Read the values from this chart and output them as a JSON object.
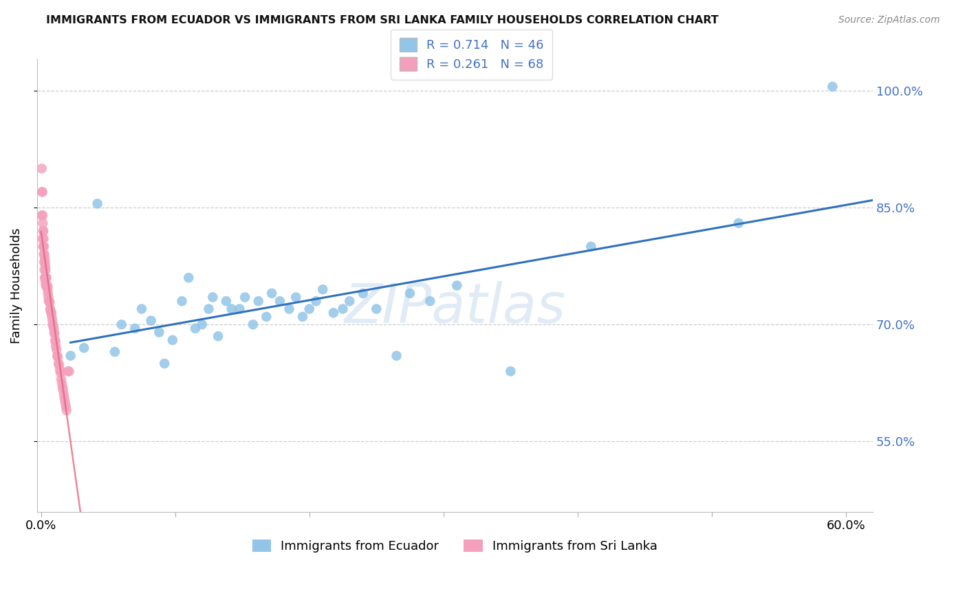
{
  "title": "IMMIGRANTS FROM ECUADOR VS IMMIGRANTS FROM SRI LANKA FAMILY HOUSEHOLDS CORRELATION CHART",
  "source": "Source: ZipAtlas.com",
  "xlabel_ecuador": "Immigrants from Ecuador",
  "xlabel_srilanka": "Immigrants from Sri Lanka",
  "ylabel": "Family Households",
  "watermark": "ZIPatlas",
  "xlim": [
    -0.003,
    0.62
  ],
  "ylim": [
    0.46,
    1.04
  ],
  "color_ecuador": "#92C5E8",
  "color_srilanka": "#F4A0BC",
  "color_line_ecuador": "#3070C0",
  "color_line_srilanka": "#E06080",
  "color_right_axis": "#4472C4",
  "ecuador_R": 0.714,
  "ecuador_N": 46,
  "srilanka_R": 0.261,
  "srilanka_N": 68,
  "ecuador_x": [
    0.022,
    0.032,
    0.042,
    0.055,
    0.06,
    0.07,
    0.075,
    0.082,
    0.088,
    0.092,
    0.098,
    0.105,
    0.11,
    0.115,
    0.12,
    0.125,
    0.128,
    0.132,
    0.138,
    0.142,
    0.148,
    0.152,
    0.158,
    0.162,
    0.168,
    0.172,
    0.178,
    0.185,
    0.19,
    0.195,
    0.2,
    0.205,
    0.21,
    0.218,
    0.225,
    0.23,
    0.24,
    0.25,
    0.265,
    0.275,
    0.29,
    0.31,
    0.35,
    0.41,
    0.52,
    0.59
  ],
  "ecuador_y": [
    0.66,
    0.67,
    0.855,
    0.665,
    0.7,
    0.695,
    0.72,
    0.705,
    0.69,
    0.65,
    0.68,
    0.73,
    0.76,
    0.695,
    0.7,
    0.72,
    0.735,
    0.685,
    0.73,
    0.72,
    0.72,
    0.735,
    0.7,
    0.73,
    0.71,
    0.74,
    0.73,
    0.72,
    0.735,
    0.71,
    0.72,
    0.73,
    0.745,
    0.715,
    0.72,
    0.73,
    0.74,
    0.72,
    0.66,
    0.74,
    0.73,
    0.75,
    0.64,
    0.8,
    0.83,
    1.005
  ],
  "srilanka_x": [
    0.0005,
    0.0005,
    0.0008,
    0.001,
    0.001,
    0.0012,
    0.0013,
    0.0015,
    0.0015,
    0.0018,
    0.0018,
    0.002,
    0.002,
    0.0022,
    0.0022,
    0.0025,
    0.0025,
    0.0028,
    0.0028,
    0.003,
    0.003,
    0.0032,
    0.0032,
    0.0035,
    0.0035,
    0.0038,
    0.004,
    0.0042,
    0.0045,
    0.0048,
    0.005,
    0.0052,
    0.0055,
    0.0058,
    0.006,
    0.0065,
    0.0068,
    0.007,
    0.0075,
    0.0078,
    0.008,
    0.0085,
    0.0088,
    0.009,
    0.0095,
    0.0098,
    0.01,
    0.0105,
    0.0108,
    0.011,
    0.0115,
    0.012,
    0.0125,
    0.013,
    0.0135,
    0.014,
    0.0145,
    0.015,
    0.0155,
    0.016,
    0.0165,
    0.017,
    0.0175,
    0.018,
    0.0185,
    0.019,
    0.02,
    0.021
  ],
  "srilanka_y": [
    0.9,
    0.84,
    0.87,
    0.87,
    0.81,
    0.84,
    0.83,
    0.82,
    0.8,
    0.82,
    0.8,
    0.81,
    0.79,
    0.8,
    0.78,
    0.79,
    0.77,
    0.785,
    0.76,
    0.78,
    0.76,
    0.775,
    0.755,
    0.77,
    0.75,
    0.76,
    0.76,
    0.75,
    0.75,
    0.745,
    0.748,
    0.74,
    0.735,
    0.73,
    0.73,
    0.728,
    0.72,
    0.718,
    0.715,
    0.715,
    0.71,
    0.705,
    0.7,
    0.698,
    0.695,
    0.69,
    0.688,
    0.68,
    0.678,
    0.672,
    0.668,
    0.66,
    0.658,
    0.65,
    0.648,
    0.642,
    0.638,
    0.63,
    0.625,
    0.62,
    0.616,
    0.61,
    0.605,
    0.6,
    0.595,
    0.59,
    0.64,
    0.64
  ]
}
